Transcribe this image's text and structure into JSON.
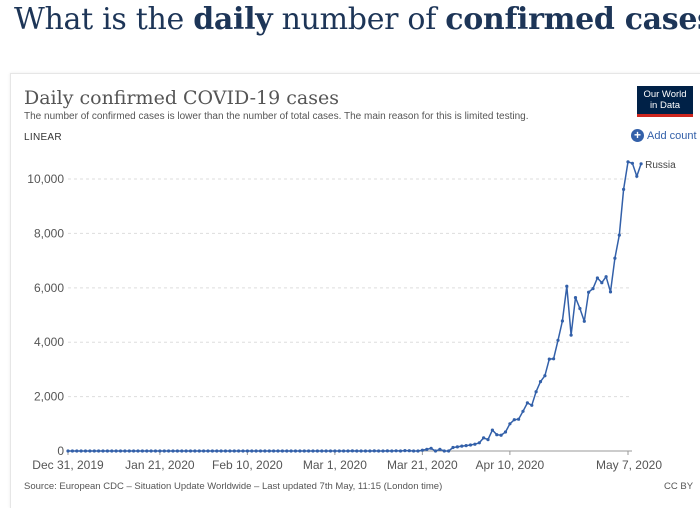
{
  "page": {
    "headline_pre": "What is the ",
    "headline_bold1": "daily",
    "headline_mid": " number of ",
    "headline_bold2": "confirmed cases",
    "headline_post": "?"
  },
  "logo": {
    "line1": "Our World",
    "line2": "in Data"
  },
  "controls": {
    "scale_label": "LINEAR",
    "add_country_label": "Add count"
  },
  "footer": {
    "source": "Source: European CDC – Situation Update Worldwide – Last updated 7th May, 11:15 (London time)",
    "license": "CC BY"
  },
  "colors": {
    "series": "#3360a9",
    "headline": "#1d3557",
    "grid": "#dddddd",
    "logo_bg": "#002147",
    "logo_accent": "#ce261e"
  },
  "chart_data": {
    "type": "line",
    "title": "Daily confirmed COVID-19 cases",
    "subtitle": "The number of confirmed cases is lower than the number of total cases. The main reason for this is limited testing.",
    "xlabel": "",
    "ylabel": "",
    "x_start": "Dec 31, 2019",
    "x_end": "May 7, 2020",
    "x_tick_labels": [
      "Dec 31, 2019",
      "Jan 21, 2020",
      "Feb 10, 2020",
      "Mar 1, 2020",
      "Mar 21, 2020",
      "Apr 10, 2020",
      "May 7, 2020"
    ],
    "x_tick_days": [
      0,
      21,
      41,
      61,
      81,
      101,
      128
    ],
    "y_tick_values": [
      0,
      2000,
      4000,
      6000,
      8000,
      10000
    ],
    "y_tick_labels": [
      "0",
      "2,000",
      "4,000",
      "6,000",
      "8,000",
      "10,000"
    ],
    "ylim": [
      0,
      10700
    ],
    "grid": true,
    "series": [
      {
        "name": "Russia",
        "start_day": 0,
        "values": [
          0,
          0,
          0,
          0,
          0,
          0,
          0,
          0,
          0,
          0,
          0,
          0,
          0,
          0,
          0,
          0,
          0,
          0,
          0,
          0,
          0,
          0,
          0,
          0,
          0,
          0,
          0,
          0,
          0,
          0,
          0,
          0,
          0,
          0,
          0,
          0,
          0,
          0,
          0,
          0,
          0,
          0,
          0,
          0,
          0,
          0,
          0,
          0,
          0,
          0,
          0,
          0,
          0,
          0,
          0,
          0,
          0,
          0,
          0,
          0,
          0,
          0,
          0,
          0,
          0,
          2,
          0,
          0,
          0,
          0,
          3,
          0,
          0,
          3,
          0,
          6,
          0,
          14,
          10,
          0,
          0,
          28,
          60,
          100,
          0,
          60,
          0,
          0,
          130,
          150,
          180,
          200,
          220,
          250,
          300,
          480,
          420,
          770,
          600,
          580,
          700,
          1000,
          1150,
          1170,
          1460,
          1770,
          1680,
          2180,
          2550,
          2770,
          3380,
          3390,
          4070,
          4780,
          6060,
          4260,
          5640,
          5240,
          4770,
          5840,
          5970,
          6360,
          6190,
          6410,
          5850,
          7090,
          7940,
          9620,
          10630,
          10580,
          10100,
          10560
        ]
      }
    ]
  }
}
